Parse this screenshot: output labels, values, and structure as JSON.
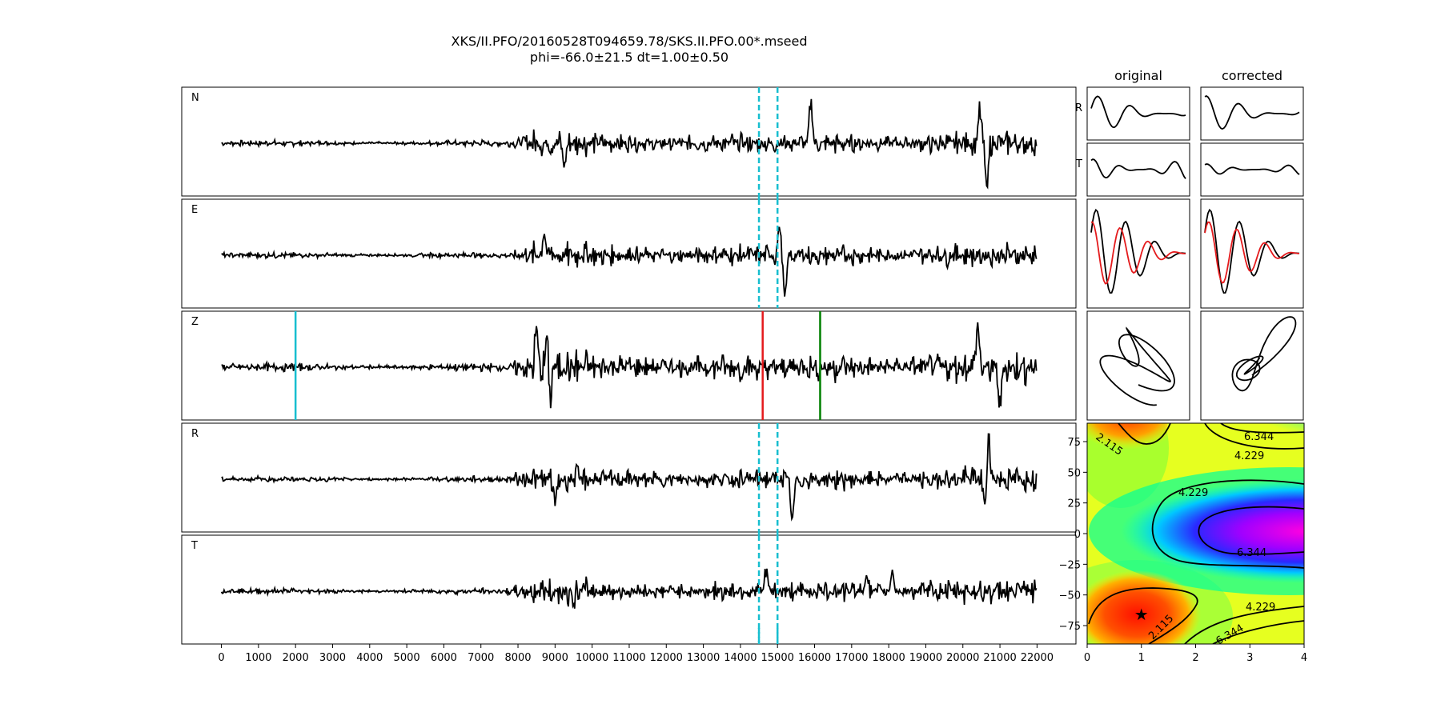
{
  "title": {
    "line1": "XKS/II.PFO/20160528T094659.78/SKS.II.PFO.00*.mseed",
    "line2": "phi=-66.0±21.5 dt=1.00±0.50"
  },
  "colors": {
    "trace": "#000000",
    "window": "#17becf",
    "pick_start": "#17becf",
    "pick_red": "#e41a1c",
    "pick_green": "#008000",
    "corrected_overlay": "#e41a1c"
  },
  "chart_data": [
    {
      "type": "line",
      "panel": "seismograms",
      "x_ticks": [
        0,
        1000,
        2000,
        3000,
        4000,
        5000,
        6000,
        7000,
        8000,
        9000,
        10000,
        11000,
        12000,
        13000,
        14000,
        15000,
        16000,
        17000,
        18000,
        19000,
        20000,
        21000,
        22000
      ],
      "x_tick_labels": [
        "0",
        "1000",
        "2000",
        "3000",
        "4000",
        "5000",
        "6000",
        "7000",
        "8000",
        "9000",
        "10000",
        "11000",
        "12000",
        "13000",
        "14000",
        "15000",
        "16000",
        "17000",
        "18000",
        "19000",
        "20000",
        "21000",
        "22000"
      ],
      "xlim": [
        -1070,
        23050
      ],
      "traces": [
        {
          "label": "N",
          "events": [
            {
              "x": 15900,
              "amp": 0.9
            },
            {
              "x": 20650,
              "amp": -1.0
            },
            {
              "x": 20450,
              "amp": 0.7
            },
            {
              "x": 9250,
              "amp": -0.5
            }
          ],
          "window": [
            14500,
            15000
          ]
        },
        {
          "label": "E",
          "events": [
            {
              "x": 15200,
              "amp": -1.0
            },
            {
              "x": 15050,
              "amp": 0.6
            },
            {
              "x": 8700,
              "amp": 0.55
            }
          ],
          "window": [
            14500,
            15000
          ]
        },
        {
          "label": "Z",
          "events": [
            {
              "x": 8800,
              "amp": 1.0
            },
            {
              "x": 8850,
              "amp": -1.0
            },
            {
              "x": 8500,
              "amp": 0.8
            },
            {
              "x": 20400,
              "amp": 0.9
            },
            {
              "x": 21000,
              "amp": -0.85
            }
          ],
          "picks": [
            2000,
            14600,
            16150
          ]
        },
        {
          "label": "R",
          "events": [
            {
              "x": 20700,
              "amp": 1.0
            },
            {
              "x": 15400,
              "amp": -1.0
            },
            {
              "x": 20600,
              "amp": -0.6
            },
            {
              "x": 9000,
              "amp": -0.5
            }
          ],
          "window": [
            14500,
            15000
          ]
        },
        {
          "label": "T",
          "events": [
            {
              "x": 14700,
              "amp": 0.45
            },
            {
              "x": 18100,
              "amp": 0.45
            },
            {
              "x": 9500,
              "amp": -0.3
            },
            {
              "x": 17400,
              "amp": 0.35
            }
          ],
          "window": [
            14500,
            15000
          ]
        }
      ]
    },
    {
      "type": "line",
      "panel": "particle-motion",
      "column_titles": [
        "original",
        "corrected"
      ],
      "row_labels": [
        "R",
        "T"
      ]
    },
    {
      "type": "heatmap",
      "panel": "error-surface",
      "x_ticks": [
        0,
        1,
        2,
        3,
        4
      ],
      "xlim": [
        0,
        4
      ],
      "y_ticks": [
        75,
        50,
        25,
        0,
        -25,
        -50,
        -75
      ],
      "y_tick_labels": [
        "75",
        "50",
        "25",
        "0",
        "−25",
        "−50",
        "−75"
      ],
      "ylim": [
        -90,
        90
      ],
      "contour_labels": [
        "2.115",
        "4.229",
        "6.344",
        "4.229",
        "6.344",
        "4.229",
        "2.115",
        "6.344"
      ],
      "best_fit": {
        "dt": 1.0,
        "phi": -66.0
      }
    }
  ]
}
